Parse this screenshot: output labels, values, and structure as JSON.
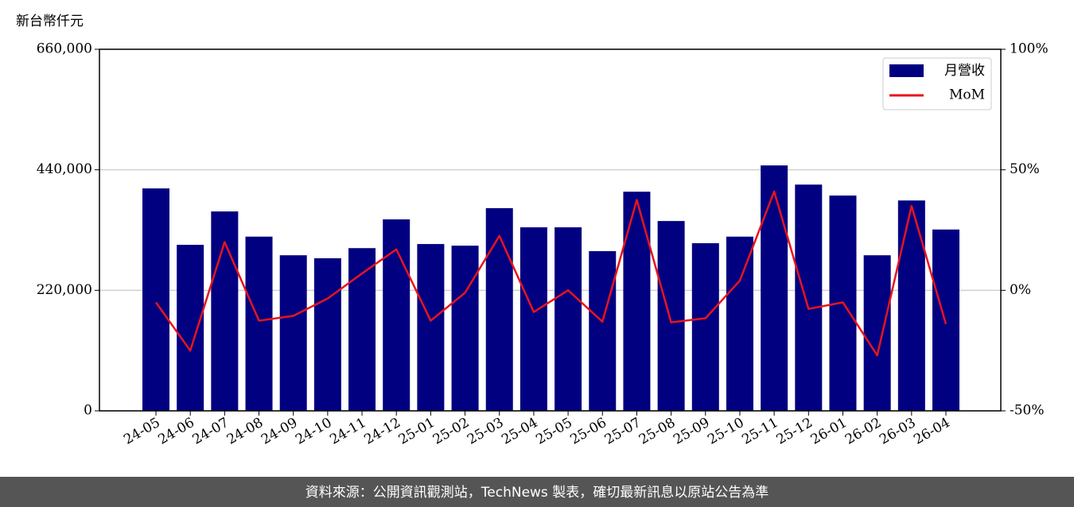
{
  "chart_data": {
    "type": "bar",
    "y_label": "新台幣仟元",
    "categories": [
      "24-05",
      "24-06",
      "24-07",
      "24-08",
      "24-09",
      "24-10",
      "24-11",
      "24-12",
      "25-01",
      "25-02",
      "25-03",
      "25-04",
      "25-05",
      "25-06",
      "25-07",
      "25-08",
      "25-09",
      "25-10",
      "25-11",
      "25-12",
      "26-01",
      "26-02",
      "26-03",
      "26-04"
    ],
    "series": [
      {
        "name": "月營收",
        "type": "bar",
        "color": "#000080",
        "values": [
          406000,
          303000,
          364000,
          318000,
          284000,
          278500,
          297000,
          349500,
          304500,
          301500,
          370000,
          335000,
          335000,
          291500,
          400000,
          346500,
          306000,
          318000,
          448000,
          413000,
          393000,
          284000,
          384000,
          331000
        ]
      },
      {
        "name": "MoM",
        "type": "line",
        "color": "#e8141c",
        "axis": "y2",
        "values": [
          -5,
          -25,
          20,
          -12.6,
          -10.6,
          -3.4,
          7,
          17,
          -12.6,
          -1,
          22.6,
          -9,
          0,
          -13,
          37.5,
          -13.3,
          -11.6,
          4,
          41,
          -7.7,
          -5,
          -27,
          35,
          -14
        ]
      }
    ],
    "ylim": [
      0,
      660000
    ],
    "yticks": [
      0,
      {
        "value": 220000,
        "label": "220,000"
      },
      {
        "value": 440000,
        "label": "440,000"
      },
      {
        "value": 660000,
        "label": "660,000"
      }
    ],
    "y2lim": [
      -50,
      100
    ],
    "y2ticks": [
      {
        "value": -50,
        "label": "-50%"
      },
      {
        "value": 0,
        "label": "0%"
      },
      {
        "value": 50,
        "label": "50%"
      },
      {
        "value": 100,
        "label": "100%"
      }
    ],
    "grid": true,
    "legend": "upper right"
  },
  "footer": "資料來源：公開資訊觀測站，TechNews 製表，確切最新訊息以原站公告為準"
}
